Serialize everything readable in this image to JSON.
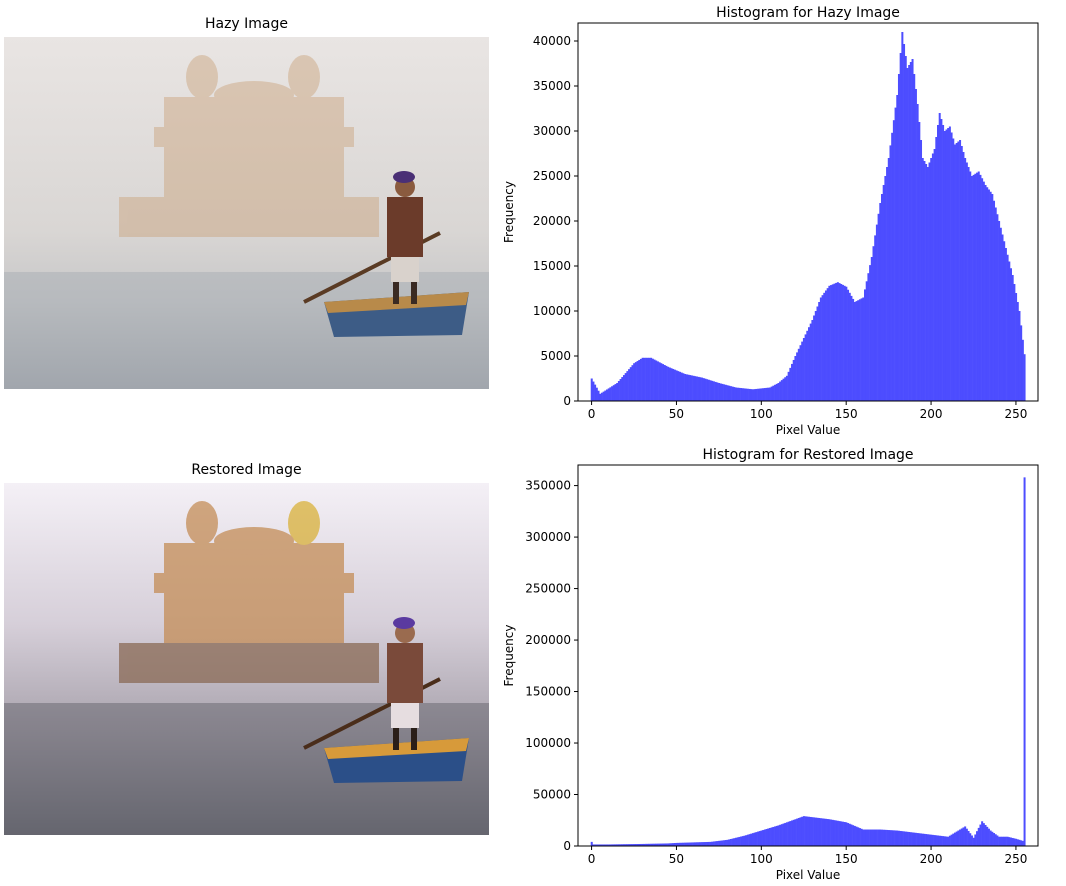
{
  "figure": {
    "photo_titles": [
      "Hazy Image",
      "Restored Image"
    ]
  },
  "colors": {
    "bar": "#4d4dff",
    "axis": "#000000",
    "background": "#ffffff"
  },
  "chart_data": [
    {
      "type": "bar",
      "title": "Histogram for Hazy Image",
      "xlabel": "Pixel Value",
      "ylabel": "Frequency",
      "xlim": [
        -8,
        263
      ],
      "ylim": [
        0,
        42000
      ],
      "xticks": [
        0,
        50,
        100,
        150,
        200,
        250
      ],
      "yticks": [
        0,
        5000,
        10000,
        15000,
        20000,
        25000,
        30000,
        35000,
        40000
      ],
      "grid": false,
      "bins": 256,
      "x": [
        0,
        5,
        15,
        25,
        30,
        35,
        45,
        55,
        65,
        75,
        85,
        95,
        105,
        110,
        115,
        120,
        130,
        135,
        140,
        145,
        150,
        155,
        160,
        165,
        170,
        175,
        180,
        183,
        186,
        189,
        192,
        195,
        198,
        202,
        205,
        208,
        211,
        214,
        217,
        220,
        224,
        228,
        232,
        236,
        240,
        244,
        248,
        252,
        255
      ],
      "y": [
        2500,
        800,
        2000,
        4200,
        4800,
        4800,
        3800,
        3000,
        2600,
        2000,
        1500,
        1300,
        1500,
        2000,
        2800,
        5000,
        9000,
        11500,
        12800,
        13200,
        12700,
        11000,
        11500,
        16000,
        22000,
        27000,
        34000,
        41000,
        37000,
        38000,
        33000,
        27000,
        26000,
        28000,
        32000,
        30000,
        30500,
        28500,
        29000,
        27000,
        25000,
        25500,
        24000,
        23000,
        20000,
        17000,
        14000,
        10000,
        5200
      ]
    },
    {
      "type": "bar",
      "title": "Histogram for Restored Image",
      "xlabel": "Pixel Value",
      "ylabel": "Frequency",
      "xlim": [
        -8,
        263
      ],
      "ylim": [
        0,
        370000
      ],
      "xticks": [
        0,
        50,
        100,
        150,
        200,
        250
      ],
      "yticks": [
        0,
        50000,
        100000,
        150000,
        200000,
        250000,
        300000,
        350000
      ],
      "grid": false,
      "bins": 256,
      "x": [
        0,
        1,
        10,
        30,
        45,
        50,
        60,
        70,
        80,
        90,
        100,
        110,
        120,
        125,
        130,
        140,
        150,
        160,
        170,
        180,
        190,
        200,
        210,
        220,
        225,
        230,
        235,
        240,
        245,
        250,
        254,
        255
      ],
      "y": [
        4000,
        1500,
        1500,
        2000,
        2500,
        3000,
        3500,
        4000,
        6000,
        10000,
        15000,
        20000,
        26000,
        29000,
        28000,
        26000,
        23000,
        16000,
        16000,
        15000,
        13000,
        11000,
        9000,
        19000,
        8000,
        24000,
        15000,
        9000,
        9000,
        7000,
        5000,
        358000
      ]
    }
  ]
}
